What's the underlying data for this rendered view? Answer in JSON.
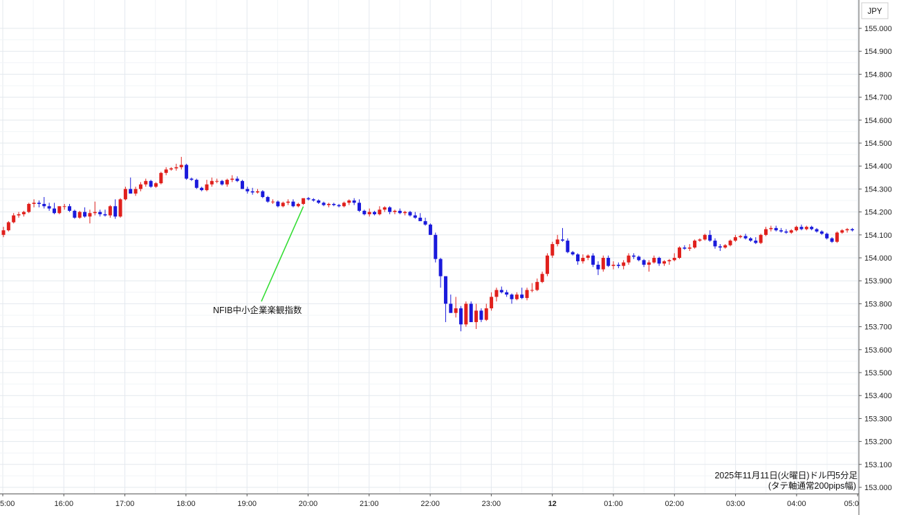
{
  "chart_data": {
    "type": "candlestick",
    "title": "",
    "currency_label": "JPY",
    "caption_line1": "2025年11月11日(火曜日)ドル円5分足",
    "caption_line2": "(タテ軸通常200pips幅)",
    "annotation": "NFIB中小企業楽観指数",
    "ylim": [
      153.0,
      155.05
    ],
    "y_ticks": [
      "155.000",
      "154.900",
      "154.800",
      "154.700",
      "154.600",
      "154.500",
      "154.400",
      "154.300",
      "154.200",
      "154.100",
      "154.000",
      "153.900",
      "153.800",
      "153.700",
      "153.600",
      "153.500",
      "153.400",
      "153.300",
      "153.200",
      "153.100",
      "153.000"
    ],
    "x_ticks": [
      {
        "label": "5:00",
        "bold": false
      },
      {
        "label": "16:00",
        "bold": false
      },
      {
        "label": "17:00",
        "bold": false
      },
      {
        "label": "18:00",
        "bold": false
      },
      {
        "label": "19:00",
        "bold": false
      },
      {
        "label": "20:00",
        "bold": false
      },
      {
        "label": "21:00",
        "bold": false
      },
      {
        "label": "22:00",
        "bold": false
      },
      {
        "label": "23:00",
        "bold": false
      },
      {
        "label": "12",
        "bold": true
      },
      {
        "label": "01:00",
        "bold": false
      },
      {
        "label": "02:00",
        "bold": false
      },
      {
        "label": "03:00",
        "bold": false
      },
      {
        "label": "04:00",
        "bold": false
      },
      {
        "label": "05:0",
        "bold": false
      }
    ],
    "grid": true,
    "up_color": "#e0201c",
    "down_color": "#1a1adb",
    "annotation_line_color": "#33dd33",
    "annotated_candle_index": 59,
    "candles": [
      {
        "o": 154.1,
        "h": 154.135,
        "l": 154.09,
        "c": 154.12
      },
      {
        "o": 154.12,
        "h": 154.16,
        "l": 154.115,
        "c": 154.155
      },
      {
        "o": 154.155,
        "h": 154.195,
        "l": 154.15,
        "c": 154.185
      },
      {
        "o": 154.185,
        "h": 154.2,
        "l": 154.175,
        "c": 154.19
      },
      {
        "o": 154.19,
        "h": 154.205,
        "l": 154.18,
        "c": 154.2
      },
      {
        "o": 154.2,
        "h": 154.24,
        "l": 154.195,
        "c": 154.235
      },
      {
        "o": 154.235,
        "h": 154.255,
        "l": 154.22,
        "c": 154.24
      },
      {
        "o": 154.24,
        "h": 154.25,
        "l": 154.22,
        "c": 154.235
      },
      {
        "o": 154.235,
        "h": 154.265,
        "l": 154.215,
        "c": 154.225
      },
      {
        "o": 154.225,
        "h": 154.24,
        "l": 154.205,
        "c": 154.215
      },
      {
        "o": 154.215,
        "h": 154.24,
        "l": 154.19,
        "c": 154.195
      },
      {
        "o": 154.195,
        "h": 154.225,
        "l": 154.19,
        "c": 154.225
      },
      {
        "o": 154.225,
        "h": 154.235,
        "l": 154.21,
        "c": 154.225
      },
      {
        "o": 154.225,
        "h": 154.235,
        "l": 154.2,
        "c": 154.205
      },
      {
        "o": 154.205,
        "h": 154.21,
        "l": 154.17,
        "c": 154.175
      },
      {
        "o": 154.175,
        "h": 154.205,
        "l": 154.17,
        "c": 154.2
      },
      {
        "o": 154.2,
        "h": 154.22,
        "l": 154.175,
        "c": 154.18
      },
      {
        "o": 154.18,
        "h": 154.21,
        "l": 154.15,
        "c": 154.195
      },
      {
        "o": 154.195,
        "h": 154.245,
        "l": 154.185,
        "c": 154.2
      },
      {
        "o": 154.2,
        "h": 154.21,
        "l": 154.18,
        "c": 154.19
      },
      {
        "o": 154.19,
        "h": 154.21,
        "l": 154.18,
        "c": 154.185
      },
      {
        "o": 154.185,
        "h": 154.23,
        "l": 154.175,
        "c": 154.225
      },
      {
        "o": 154.225,
        "h": 154.255,
        "l": 154.17,
        "c": 154.18
      },
      {
        "o": 154.18,
        "h": 154.26,
        "l": 154.175,
        "c": 154.255
      },
      {
        "o": 154.255,
        "h": 154.31,
        "l": 154.25,
        "c": 154.3
      },
      {
        "o": 154.3,
        "h": 154.35,
        "l": 154.28,
        "c": 154.28
      },
      {
        "o": 154.28,
        "h": 154.31,
        "l": 154.27,
        "c": 154.3
      },
      {
        "o": 154.3,
        "h": 154.33,
        "l": 154.29,
        "c": 154.32
      },
      {
        "o": 154.32,
        "h": 154.345,
        "l": 154.31,
        "c": 154.335
      },
      {
        "o": 154.335,
        "h": 154.34,
        "l": 154.305,
        "c": 154.31
      },
      {
        "o": 154.31,
        "h": 154.33,
        "l": 154.305,
        "c": 154.325
      },
      {
        "o": 154.325,
        "h": 154.375,
        "l": 154.32,
        "c": 154.37
      },
      {
        "o": 154.37,
        "h": 154.395,
        "l": 154.36,
        "c": 154.385
      },
      {
        "o": 154.385,
        "h": 154.395,
        "l": 154.38,
        "c": 154.39
      },
      {
        "o": 154.39,
        "h": 154.41,
        "l": 154.38,
        "c": 154.395
      },
      {
        "o": 154.395,
        "h": 154.44,
        "l": 154.385,
        "c": 154.405
      },
      {
        "o": 154.405,
        "h": 154.41,
        "l": 154.34,
        "c": 154.345
      },
      {
        "o": 154.345,
        "h": 154.35,
        "l": 154.335,
        "c": 154.34
      },
      {
        "o": 154.34,
        "h": 154.345,
        "l": 154.3,
        "c": 154.305
      },
      {
        "o": 154.305,
        "h": 154.31,
        "l": 154.29,
        "c": 154.295
      },
      {
        "o": 154.295,
        "h": 154.34,
        "l": 154.29,
        "c": 154.32
      },
      {
        "o": 154.32,
        "h": 154.35,
        "l": 154.31,
        "c": 154.335
      },
      {
        "o": 154.335,
        "h": 154.345,
        "l": 154.325,
        "c": 154.335
      },
      {
        "o": 154.335,
        "h": 154.34,
        "l": 154.315,
        "c": 154.32
      },
      {
        "o": 154.32,
        "h": 154.345,
        "l": 154.31,
        "c": 154.34
      },
      {
        "o": 154.34,
        "h": 154.36,
        "l": 154.33,
        "c": 154.345
      },
      {
        "o": 154.345,
        "h": 154.355,
        "l": 154.33,
        "c": 154.335
      },
      {
        "o": 154.335,
        "h": 154.34,
        "l": 154.3,
        "c": 154.3
      },
      {
        "o": 154.3,
        "h": 154.31,
        "l": 154.28,
        "c": 154.29
      },
      {
        "o": 154.29,
        "h": 154.305,
        "l": 154.275,
        "c": 154.285
      },
      {
        "o": 154.285,
        "h": 154.3,
        "l": 154.28,
        "c": 154.29
      },
      {
        "o": 154.29,
        "h": 154.295,
        "l": 154.26,
        "c": 154.265
      },
      {
        "o": 154.265,
        "h": 154.27,
        "l": 154.24,
        "c": 154.245
      },
      {
        "o": 154.245,
        "h": 154.255,
        "l": 154.235,
        "c": 154.245
      },
      {
        "o": 154.245,
        "h": 154.25,
        "l": 154.22,
        "c": 154.225
      },
      {
        "o": 154.225,
        "h": 154.245,
        "l": 154.22,
        "c": 154.24
      },
      {
        "o": 154.24,
        "h": 154.255,
        "l": 154.23,
        "c": 154.245
      },
      {
        "o": 154.245,
        "h": 154.255,
        "l": 154.22,
        "c": 154.225
      },
      {
        "o": 154.225,
        "h": 154.24,
        "l": 154.22,
        "c": 154.235
      },
      {
        "o": 154.235,
        "h": 154.25,
        "l": 154.23,
        "c": 154.26
      },
      {
        "o": 154.26,
        "h": 154.265,
        "l": 154.25,
        "c": 154.255
      },
      {
        "o": 154.255,
        "h": 154.26,
        "l": 154.245,
        "c": 154.25
      },
      {
        "o": 154.25,
        "h": 154.255,
        "l": 154.235,
        "c": 154.24
      },
      {
        "o": 154.24,
        "h": 154.245,
        "l": 154.225,
        "c": 154.23
      },
      {
        "o": 154.23,
        "h": 154.24,
        "l": 154.22,
        "c": 154.235
      },
      {
        "o": 154.235,
        "h": 154.24,
        "l": 154.225,
        "c": 154.23
      },
      {
        "o": 154.23,
        "h": 154.235,
        "l": 154.22,
        "c": 154.225
      },
      {
        "o": 154.225,
        "h": 154.245,
        "l": 154.22,
        "c": 154.24
      },
      {
        "o": 154.24,
        "h": 154.255,
        "l": 154.23,
        "c": 154.25
      },
      {
        "o": 154.25,
        "h": 154.26,
        "l": 154.23,
        "c": 154.24
      },
      {
        "o": 154.24,
        "h": 154.255,
        "l": 154.2,
        "c": 154.205
      },
      {
        "o": 154.205,
        "h": 154.21,
        "l": 154.185,
        "c": 154.19
      },
      {
        "o": 154.19,
        "h": 154.215,
        "l": 154.18,
        "c": 154.2
      },
      {
        "o": 154.2,
        "h": 154.205,
        "l": 154.185,
        "c": 154.19
      },
      {
        "o": 154.19,
        "h": 154.225,
        "l": 154.185,
        "c": 154.21
      },
      {
        "o": 154.21,
        "h": 154.225,
        "l": 154.2,
        "c": 154.22
      },
      {
        "o": 154.22,
        "h": 154.225,
        "l": 154.19,
        "c": 154.2
      },
      {
        "o": 154.2,
        "h": 154.21,
        "l": 154.19,
        "c": 154.205
      },
      {
        "o": 154.205,
        "h": 154.215,
        "l": 154.19,
        "c": 154.195
      },
      {
        "o": 154.195,
        "h": 154.205,
        "l": 154.185,
        "c": 154.2
      },
      {
        "o": 154.2,
        "h": 154.205,
        "l": 154.18,
        "c": 154.185
      },
      {
        "o": 154.185,
        "h": 154.2,
        "l": 154.17,
        "c": 154.175
      },
      {
        "o": 154.175,
        "h": 154.195,
        "l": 154.16,
        "c": 154.16
      },
      {
        "o": 154.16,
        "h": 154.175,
        "l": 154.14,
        "c": 154.145
      },
      {
        "o": 154.145,
        "h": 154.15,
        "l": 154.1,
        "c": 154.1
      },
      {
        "o": 154.1,
        "h": 154.11,
        "l": 153.98,
        "c": 153.995
      },
      {
        "o": 153.995,
        "h": 154.0,
        "l": 153.87,
        "c": 153.92
      },
      {
        "o": 153.92,
        "h": 153.92,
        "l": 153.72,
        "c": 153.8
      },
      {
        "o": 153.8,
        "h": 153.84,
        "l": 153.76,
        "c": 153.76
      },
      {
        "o": 153.76,
        "h": 153.83,
        "l": 153.74,
        "c": 153.78
      },
      {
        "o": 153.78,
        "h": 153.79,
        "l": 153.68,
        "c": 153.71
      },
      {
        "o": 153.71,
        "h": 153.81,
        "l": 153.7,
        "c": 153.8
      },
      {
        "o": 153.8,
        "h": 153.81,
        "l": 153.72,
        "c": 153.72
      },
      {
        "o": 153.72,
        "h": 153.8,
        "l": 153.69,
        "c": 153.77
      },
      {
        "o": 153.77,
        "h": 153.78,
        "l": 153.72,
        "c": 153.73
      },
      {
        "o": 153.73,
        "h": 153.8,
        "l": 153.725,
        "c": 153.78
      },
      {
        "o": 153.78,
        "h": 153.85,
        "l": 153.77,
        "c": 153.83
      },
      {
        "o": 153.83,
        "h": 153.87,
        "l": 153.81,
        "c": 153.86
      },
      {
        "o": 153.86,
        "h": 153.875,
        "l": 153.845,
        "c": 153.85
      },
      {
        "o": 153.85,
        "h": 153.86,
        "l": 153.83,
        "c": 153.84
      },
      {
        "o": 153.84,
        "h": 153.845,
        "l": 153.8,
        "c": 153.82
      },
      {
        "o": 153.82,
        "h": 153.85,
        "l": 153.815,
        "c": 153.84
      },
      {
        "o": 153.84,
        "h": 153.87,
        "l": 153.82,
        "c": 153.825
      },
      {
        "o": 153.825,
        "h": 153.87,
        "l": 153.815,
        "c": 153.86
      },
      {
        "o": 153.86,
        "h": 153.89,
        "l": 153.85,
        "c": 153.86
      },
      {
        "o": 153.86,
        "h": 153.91,
        "l": 153.855,
        "c": 153.895
      },
      {
        "o": 153.895,
        "h": 153.94,
        "l": 153.89,
        "c": 153.93
      },
      {
        "o": 153.93,
        "h": 154.02,
        "l": 153.92,
        "c": 154.01
      },
      {
        "o": 154.01,
        "h": 154.07,
        "l": 154.0,
        "c": 154.06
      },
      {
        "o": 154.06,
        "h": 154.1,
        "l": 154.05,
        "c": 154.08
      },
      {
        "o": 154.08,
        "h": 154.13,
        "l": 154.07,
        "c": 154.075
      },
      {
        "o": 154.075,
        "h": 154.085,
        "l": 154.02,
        "c": 154.025
      },
      {
        "o": 154.025,
        "h": 154.03,
        "l": 154.01,
        "c": 154.015
      },
      {
        "o": 154.015,
        "h": 154.02,
        "l": 153.97,
        "c": 153.985
      },
      {
        "o": 153.985,
        "h": 154.015,
        "l": 153.975,
        "c": 154.0
      },
      {
        "o": 154.0,
        "h": 154.015,
        "l": 153.99,
        "c": 154.01
      },
      {
        "o": 154.01,
        "h": 154.02,
        "l": 153.96,
        "c": 153.97
      },
      {
        "o": 153.97,
        "h": 153.985,
        "l": 153.925,
        "c": 153.95
      },
      {
        "o": 153.95,
        "h": 154.01,
        "l": 153.94,
        "c": 154.0
      },
      {
        "o": 154.0,
        "h": 154.01,
        "l": 153.96,
        "c": 153.965
      },
      {
        "o": 153.965,
        "h": 153.985,
        "l": 153.95,
        "c": 153.97
      },
      {
        "o": 153.97,
        "h": 153.98,
        "l": 153.955,
        "c": 153.965
      },
      {
        "o": 153.965,
        "h": 153.99,
        "l": 153.95,
        "c": 153.98
      },
      {
        "o": 153.98,
        "h": 154.02,
        "l": 153.97,
        "c": 154.01
      },
      {
        "o": 154.01,
        "h": 154.02,
        "l": 153.995,
        "c": 154.005
      },
      {
        "o": 154.005,
        "h": 154.01,
        "l": 153.985,
        "c": 153.99
      },
      {
        "o": 153.99,
        "h": 153.995,
        "l": 153.96,
        "c": 153.97
      },
      {
        "o": 153.97,
        "h": 153.99,
        "l": 153.94,
        "c": 153.98
      },
      {
        "o": 153.98,
        "h": 154.01,
        "l": 153.975,
        "c": 154.0
      },
      {
        "o": 154.0,
        "h": 154.005,
        "l": 153.965,
        "c": 153.975
      },
      {
        "o": 153.975,
        "h": 153.99,
        "l": 153.965,
        "c": 153.985
      },
      {
        "o": 153.985,
        "h": 153.995,
        "l": 153.97,
        "c": 153.99
      },
      {
        "o": 153.99,
        "h": 154.02,
        "l": 153.985,
        "c": 154.0
      },
      {
        "o": 154.0,
        "h": 154.05,
        "l": 153.995,
        "c": 154.045
      },
      {
        "o": 154.045,
        "h": 154.055,
        "l": 154.035,
        "c": 154.04
      },
      {
        "o": 154.04,
        "h": 154.06,
        "l": 154.03,
        "c": 154.045
      },
      {
        "o": 154.045,
        "h": 154.08,
        "l": 154.04,
        "c": 154.075
      },
      {
        "o": 154.075,
        "h": 154.085,
        "l": 154.07,
        "c": 154.08
      },
      {
        "o": 154.08,
        "h": 154.105,
        "l": 154.075,
        "c": 154.1
      },
      {
        "o": 154.1,
        "h": 154.12,
        "l": 154.07,
        "c": 154.075
      },
      {
        "o": 154.075,
        "h": 154.085,
        "l": 154.04,
        "c": 154.05
      },
      {
        "o": 154.05,
        "h": 154.06,
        "l": 154.03,
        "c": 154.045
      },
      {
        "o": 154.045,
        "h": 154.06,
        "l": 154.04,
        "c": 154.055
      },
      {
        "o": 154.055,
        "h": 154.08,
        "l": 154.05,
        "c": 154.075
      },
      {
        "o": 154.075,
        "h": 154.1,
        "l": 154.07,
        "c": 154.09
      },
      {
        "o": 154.09,
        "h": 154.1,
        "l": 154.085,
        "c": 154.095
      },
      {
        "o": 154.095,
        "h": 154.105,
        "l": 154.08,
        "c": 154.085
      },
      {
        "o": 154.085,
        "h": 154.09,
        "l": 154.07,
        "c": 154.075
      },
      {
        "o": 154.075,
        "h": 154.09,
        "l": 154.06,
        "c": 154.065
      },
      {
        "o": 154.065,
        "h": 154.105,
        "l": 154.06,
        "c": 154.1
      },
      {
        "o": 154.1,
        "h": 154.135,
        "l": 154.095,
        "c": 154.125
      },
      {
        "o": 154.125,
        "h": 154.14,
        "l": 154.115,
        "c": 154.13
      },
      {
        "o": 154.13,
        "h": 154.14,
        "l": 154.115,
        "c": 154.12
      },
      {
        "o": 154.12,
        "h": 154.13,
        "l": 154.11,
        "c": 154.115
      },
      {
        "o": 154.115,
        "h": 154.125,
        "l": 154.105,
        "c": 154.11
      },
      {
        "o": 154.11,
        "h": 154.125,
        "l": 154.105,
        "c": 154.12
      },
      {
        "o": 154.12,
        "h": 154.14,
        "l": 154.115,
        "c": 154.135
      },
      {
        "o": 154.135,
        "h": 154.145,
        "l": 154.12,
        "c": 154.125
      },
      {
        "o": 154.125,
        "h": 154.14,
        "l": 154.12,
        "c": 154.135
      },
      {
        "o": 154.135,
        "h": 154.14,
        "l": 154.12,
        "c": 154.125
      },
      {
        "o": 154.125,
        "h": 154.13,
        "l": 154.11,
        "c": 154.115
      },
      {
        "o": 154.115,
        "h": 154.12,
        "l": 154.1,
        "c": 154.105
      },
      {
        "o": 154.105,
        "h": 154.11,
        "l": 154.08,
        "c": 154.085
      },
      {
        "o": 154.085,
        "h": 154.09,
        "l": 154.065,
        "c": 154.07
      },
      {
        "o": 154.07,
        "h": 154.115,
        "l": 154.065,
        "c": 154.11
      },
      {
        "o": 154.11,
        "h": 154.125,
        "l": 154.105,
        "c": 154.12
      },
      {
        "o": 154.12,
        "h": 154.13,
        "l": 154.11,
        "c": 154.125
      },
      {
        "o": 154.125,
        "h": 154.13,
        "l": 154.115,
        "c": 154.12
      }
    ]
  }
}
